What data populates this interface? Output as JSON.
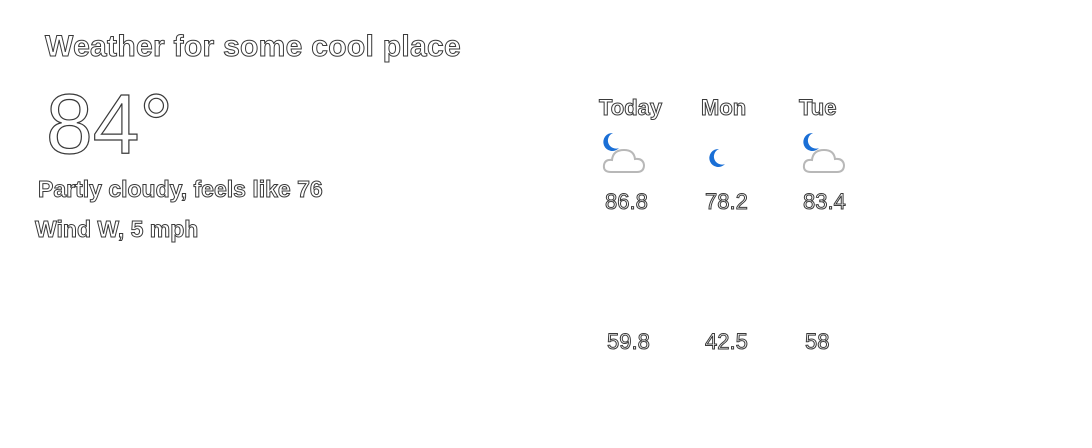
{
  "header": {
    "title": "Weather for some cool place"
  },
  "current": {
    "temperature": "84°",
    "description": "Partly cloudy, feels like 76",
    "wind": "Wind W, 5 mph"
  },
  "forecast": [
    {
      "day": "Today",
      "high": "86.8",
      "low": "59.8",
      "icon": "moon-cloud-icon"
    },
    {
      "day": "Mon",
      "high": "78.2",
      "low": "42.5",
      "icon": "moon-icon"
    },
    {
      "day": "Tue",
      "high": "83.4",
      "low": "58",
      "icon": "moon-cloud-icon"
    }
  ],
  "colors": {
    "moon": "#1a6fd6",
    "cloud_stroke": "#b8b8b8",
    "text_stroke": "#3a3a3a"
  }
}
